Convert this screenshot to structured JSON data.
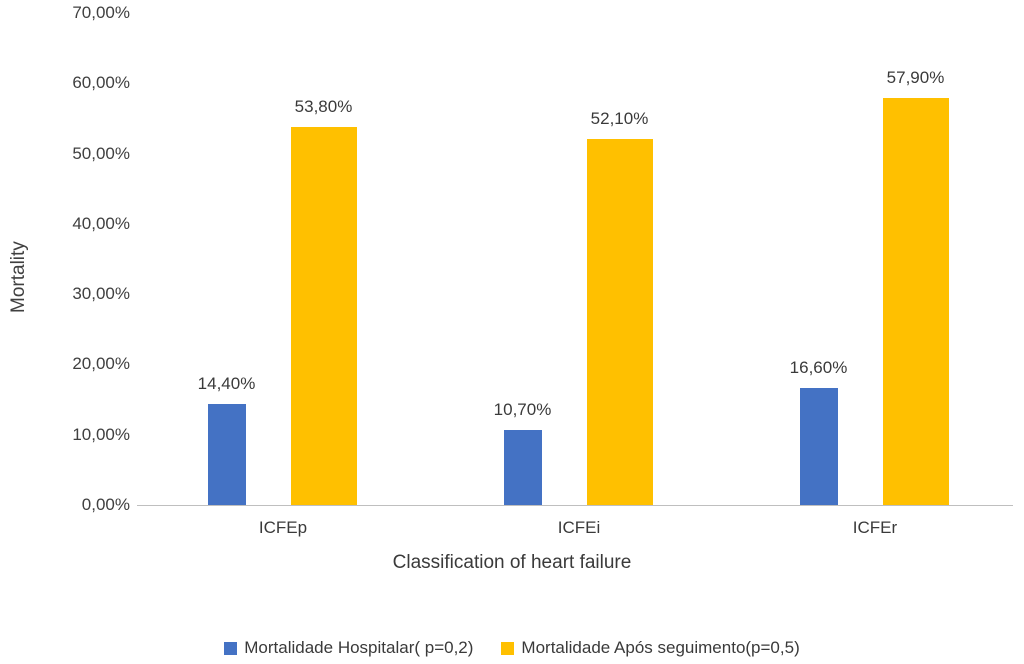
{
  "chart_data": {
    "type": "bar",
    "title": "",
    "categories": [
      "ICFEp",
      "ICFEi",
      "ICFEr"
    ],
    "series": [
      {
        "name": "Mortalidade Hospitalar( p=0,2)",
        "color": "#4472C4",
        "values": [
          14.4,
          10.7,
          16.6
        ],
        "value_labels": [
          "14,40%",
          "10,70%",
          "16,60%"
        ]
      },
      {
        "name": "Mortalidade Após seguimento(p=0,5)",
        "color": "#FFC000",
        "values": [
          53.8,
          52.1,
          57.9
        ],
        "value_labels": [
          "53,80%",
          "52,10%",
          "57,90%"
        ]
      }
    ],
    "xlabel": "Classification of heart failure",
    "ylabel": "Mortality",
    "ylim": [
      0,
      70
    ],
    "ytick_step": 10,
    "ytick_labels": [
      "0,00%",
      "10,00%",
      "20,00%",
      "30,00%",
      "40,00%",
      "50,00%",
      "60,00%",
      "70,00%"
    ],
    "grid": false,
    "legend_position": "bottom",
    "data_labels_shown": true
  }
}
